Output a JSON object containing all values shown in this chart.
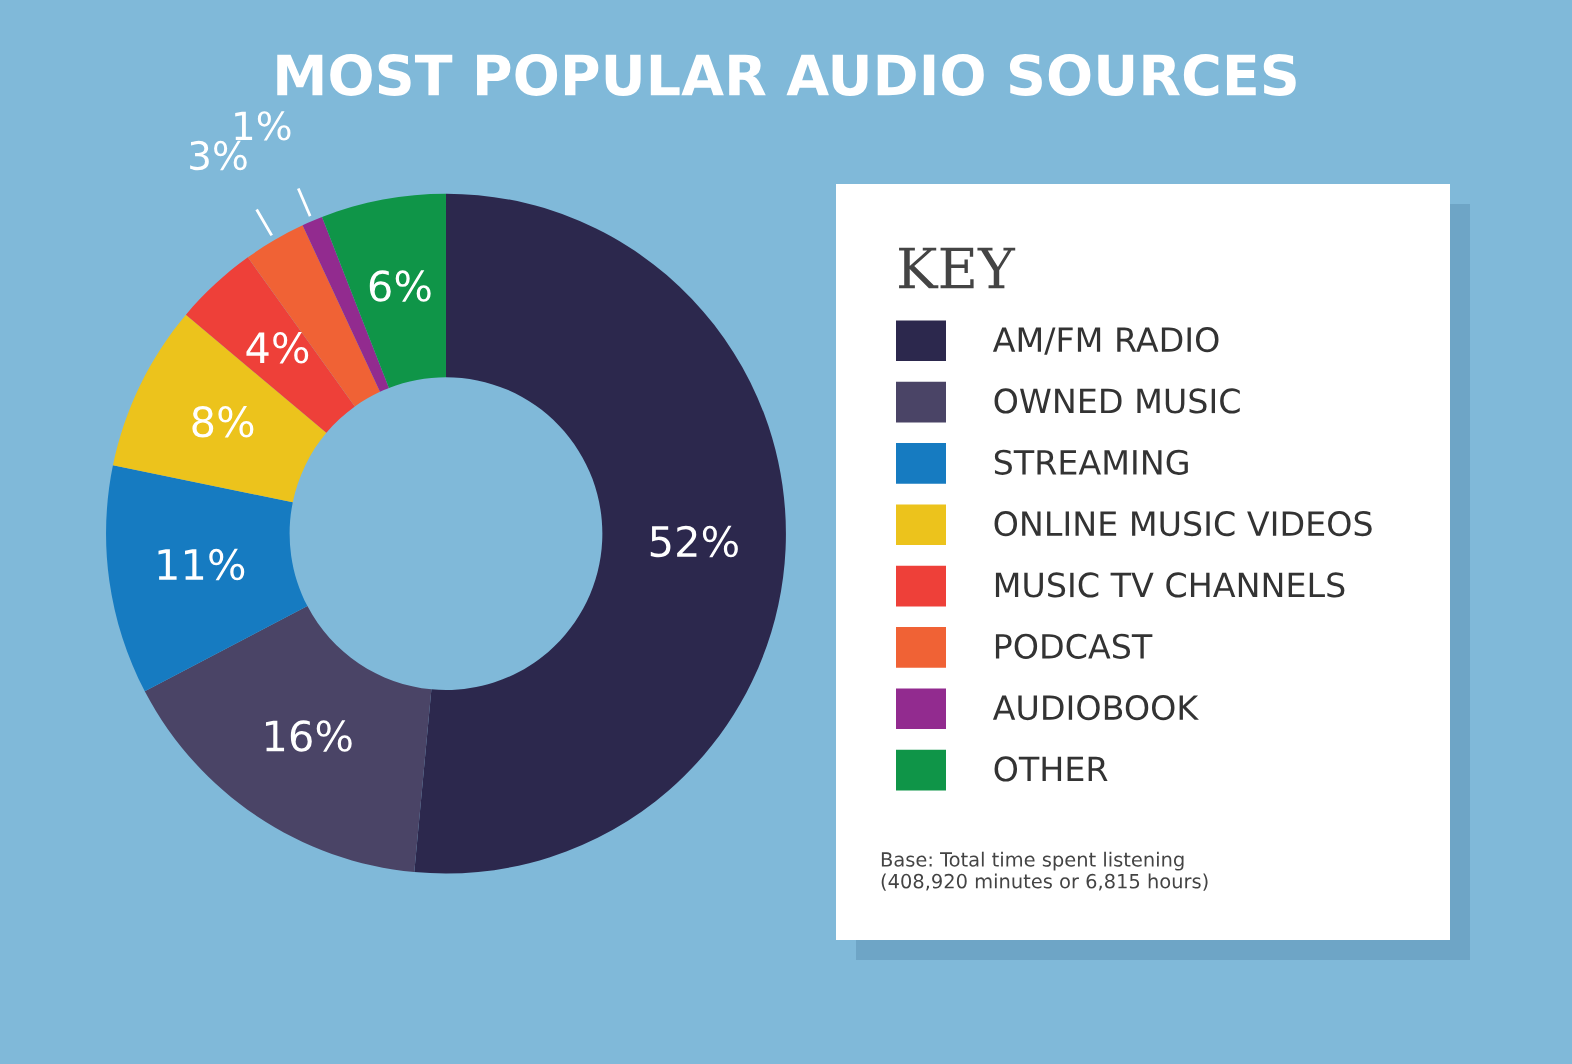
{
  "chart_data": {
    "type": "donut",
    "title": "MOST POPULAR AUDIO SOURCES",
    "legend_title": "KEY",
    "categories": [
      "AM/FM RADIO",
      "OWNED MUSIC",
      "STREAMING",
      "ONLINE MUSIC VIDEOS",
      "MUSIC TV CHANNELS",
      "PODCAST",
      "AUDIOBOOK",
      "OTHER"
    ],
    "values": [
      52,
      16,
      11,
      8,
      4,
      3,
      1,
      6
    ],
    "value_labels": [
      "52%",
      "16%",
      "11%",
      "8%",
      "4%",
      "3%",
      "1%",
      "6%"
    ],
    "colors": [
      "#2c284d",
      "#4a4466",
      "#167bc1",
      "#ecc31c",
      "#ee4039",
      "#f06235",
      "#922b8f",
      "#0f9548"
    ],
    "legend": "right",
    "annotations": [
      "Base: Total time spent listening\n(408,920 minutes or 6,815 hours)"
    ]
  }
}
